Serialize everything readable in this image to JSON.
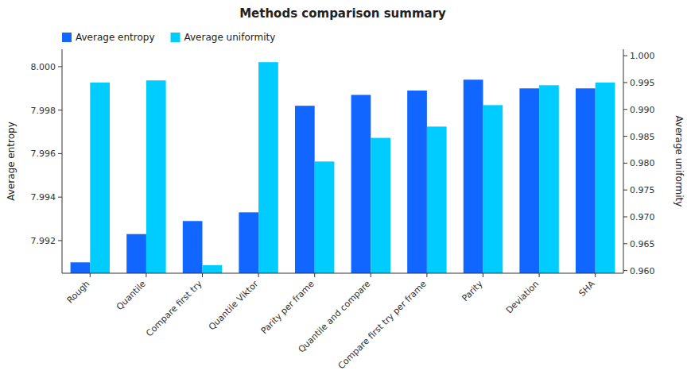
{
  "chart_data": {
    "type": "bar",
    "title": "Methods comparison summary",
    "categories": [
      "Rough",
      "Quantile",
      "Compare first try",
      "Quantile Viktor",
      "Parity per frame",
      "Quantile and compare",
      "Compare first try per frame",
      "Parity",
      "Deviation",
      "SHA"
    ],
    "series": [
      {
        "name": "Average entropy",
        "color": "#1166ff",
        "values": [
          7.991,
          7.9923,
          7.9929,
          7.9933,
          7.9982,
          7.9987,
          7.9989,
          7.9994,
          7.999,
          7.999
        ]
      },
      {
        "name": "Average uniformity",
        "color": "#00ccff",
        "axis": "y2",
        "values": [
          0.995,
          0.9954,
          0.961,
          0.9988,
          0.9803,
          0.9847,
          0.9868,
          0.9908,
          0.9945,
          0.995
        ]
      }
    ],
    "ylabel": "Average entropy",
    "y2label": "Average uniformity",
    "ylim": [
      7.9905,
      8.0008
    ],
    "yticks": [
      7.992,
      7.994,
      7.996,
      7.998,
      {
        "value": 8.0,
        "label": "8.000"
      }
    ],
    "y2lim": [
      0.9595,
      1.0012
    ],
    "y2ticks": [
      {
        "value": 0.96,
        "label": "0.960"
      },
      0.965,
      {
        "value": 0.97,
        "label": "0.970"
      },
      0.975,
      {
        "value": 0.98,
        "label": "0.980"
      },
      0.985,
      {
        "value": 0.99,
        "label": "0.990"
      },
      0.995,
      {
        "value": 1.0,
        "label": "1.000"
      }
    ],
    "legend": "upper left",
    "grid": false
  }
}
